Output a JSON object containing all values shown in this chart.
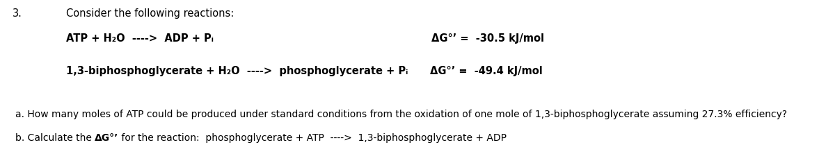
{
  "background_color": "#ffffff",
  "question_number": "3.",
  "header": "Consider the following reactions:",
  "reaction1_left": "ATP + H₂O  ---->  ADP + Pᵢ",
  "reaction1_right": "ΔG°’ =  -30.5 kJ/mol",
  "reaction2_left": "1,3-biphosphoglycerate + H₂O  ---->  phosphoglycerate + Pᵢ",
  "reaction2_right": "ΔG°’ =  -49.4 kJ/mol",
  "part_a": "a. How many moles of ATP could be produced under standard conditions from the oxidation of one mole of 1,3-biphosphoglycerate assuming 27.3% efficiency?",
  "part_b_before_bold": "b. Calculate the ",
  "part_b_bold": "ΔG°’",
  "part_b_after_bold": " for the reaction:  phosphoglycerate + ATP  ---->  1,3-biphosphoglycerate + ADP",
  "font_size_header": 10.5,
  "font_size_reactions": 10.5,
  "font_size_parts": 10.0,
  "font_size_number": 10.5
}
